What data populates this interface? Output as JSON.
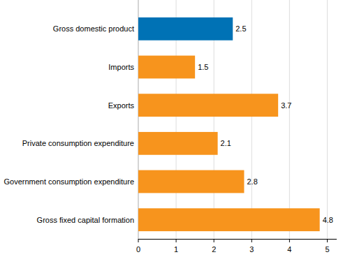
{
  "chart_data": {
    "type": "bar",
    "orientation": "horizontal",
    "categories": [
      "Gross domestic product",
      "Imports",
      "Exports",
      "Private consumption expenditure",
      "Government consumption expenditure",
      "Gross fixed capital formation"
    ],
    "values": [
      2.5,
      1.5,
      3.7,
      2.1,
      2.8,
      4.8
    ],
    "colors": [
      "#0072b5",
      "#f7941d",
      "#f7941d",
      "#f7941d",
      "#f7941d",
      "#f7941d"
    ],
    "xlim": [
      0,
      5.25
    ],
    "xticks": [
      0,
      1,
      2,
      3,
      4,
      5
    ],
    "grid": true,
    "data_labels": true
  }
}
